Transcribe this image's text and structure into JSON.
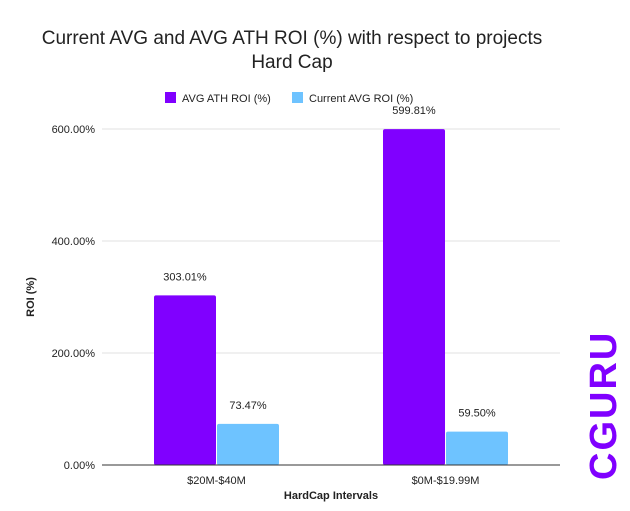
{
  "chart_data": {
    "type": "bar",
    "title_lines": [
      "Current AVG and AVG ATH ROI (%) with respect to projects",
      "Hard Cap"
    ],
    "xlabel": "HardCap Intervals",
    "ylabel": "ROI (%)",
    "categories": [
      "$20M-$40M",
      "$0M-$19.99M"
    ],
    "series": [
      {
        "name": "AVG ATH ROI (%)",
        "color": "#8000ff",
        "values": [
          303.01,
          599.81
        ],
        "labels": [
          "303.01%",
          "599.81%"
        ]
      },
      {
        "name": "Current AVG ROI (%)",
        "color": "#6ec3ff",
        "values": [
          73.47,
          59.5
        ],
        "labels": [
          "73.47%",
          "59.50%"
        ]
      }
    ],
    "ylim": [
      0,
      600
    ],
    "yticks": [
      0,
      200,
      400,
      600
    ],
    "ytick_labels": [
      "0.00%",
      "200.00%",
      "400.00%",
      "600.00%"
    ],
    "grid": true,
    "legend_position": "top-center"
  },
  "watermark": {
    "text": "CGURU",
    "color": "#8000ff"
  }
}
